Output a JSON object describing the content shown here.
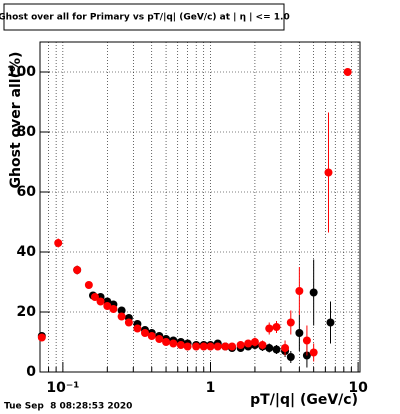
{
  "chart_data": {
    "type": "scatter",
    "title": "Ghost over all for Primary vs pT/|q| (GeV/c) at | η | <= 1.0",
    "x_label": "pT/|q| (GeV/c)",
    "y_label": "Ghost over all(%)",
    "timestamp": "Tue Sep  8 08:28:53 2020",
    "x_log": true,
    "grid": true,
    "xlim": [
      0.07,
      10.3
    ],
    "ylim": [
      0,
      110
    ],
    "xticks": [
      {
        "value": 0.1,
        "label": "10⁻¹"
      },
      1,
      10
    ],
    "xminorticks": [
      0.08,
      0.09,
      0.2,
      0.3,
      0.4,
      0.5,
      0.6,
      0.7,
      0.8,
      0.9,
      2,
      3,
      4,
      5,
      6,
      7,
      8,
      9
    ],
    "yticks": [
      0,
      20,
      40,
      60,
      80,
      100
    ],
    "series": [
      {
        "color": "#000000",
        "x": [
          0.072,
          0.125,
          0.16,
          0.18,
          0.2,
          0.22,
          0.25,
          0.28,
          0.32,
          0.36,
          0.4,
          0.45,
          0.5,
          0.56,
          0.63,
          0.7,
          0.8,
          0.9,
          1.0,
          1.12,
          1.26,
          1.4,
          1.6,
          1.8,
          2.0,
          2.25,
          2.5,
          2.8,
          3.2,
          3.5,
          4.0,
          4.5,
          5.0,
          6.5
        ],
        "values": [
          12,
          34,
          25.5,
          25,
          23.5,
          22.5,
          20.5,
          18,
          16,
          14,
          13,
          12,
          11,
          10.5,
          10,
          9.5,
          9,
          9,
          9,
          9.5,
          8.5,
          8,
          8,
          8.5,
          9,
          8.5,
          8,
          7.5,
          7,
          5,
          13,
          5.5,
          26.5,
          16.5
        ],
        "errors": [
          1,
          1.5,
          1,
          1,
          1,
          1,
          1,
          1,
          1,
          1,
          1,
          1,
          1,
          1,
          1,
          1,
          1,
          1,
          1,
          1,
          1,
          1,
          1,
          1,
          1.5,
          1.5,
          1.5,
          1.5,
          2,
          2,
          6,
          4,
          11,
          7
        ]
      },
      {
        "color": "#ff0000",
        "x": [
          0.072,
          0.093,
          0.125,
          0.15,
          0.165,
          0.18,
          0.2,
          0.22,
          0.25,
          0.28,
          0.32,
          0.36,
          0.4,
          0.45,
          0.5,
          0.56,
          0.63,
          0.7,
          0.8,
          0.9,
          1.0,
          1.12,
          1.26,
          1.4,
          1.6,
          1.8,
          2.0,
          2.25,
          2.5,
          2.8,
          3.2,
          3.5,
          4.0,
          4.5,
          5.0,
          6.3,
          8.5
        ],
        "values": [
          11.5,
          43,
          34,
          29,
          25,
          23.5,
          22,
          21,
          18.5,
          16.5,
          14.5,
          13,
          12,
          11,
          10,
          9.5,
          9,
          8.5,
          8.5,
          8.5,
          8.5,
          8.5,
          8.5,
          8.5,
          9,
          9.5,
          10,
          9,
          14.5,
          15,
          8,
          16.5,
          27,
          10.5,
          6.5,
          66.5,
          100
        ],
        "errors": [
          1,
          1.5,
          1.5,
          1,
          1,
          1,
          1,
          1,
          1,
          1,
          1,
          1,
          1,
          1,
          1,
          1,
          1,
          1,
          1,
          1,
          1,
          1,
          1,
          1,
          1,
          1,
          1.5,
          1.5,
          2,
          2,
          2.5,
          4,
          8,
          5,
          3,
          20,
          1
        ]
      }
    ]
  }
}
